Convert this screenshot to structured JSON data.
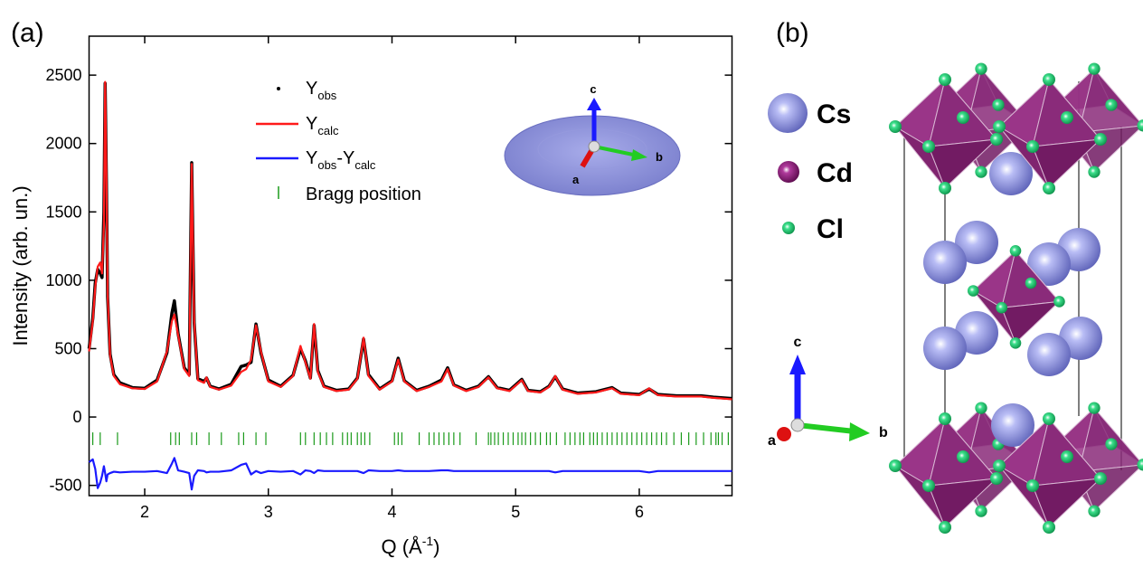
{
  "panels": [
    "(a)",
    "(b)"
  ],
  "chart_data": {
    "type": "line",
    "x_label": [
      "Q (Å",
      "-1",
      ")"
    ],
    "y_label": "Intensity (arb. un.)",
    "xlim": [
      1.55,
      6.75
    ],
    "xticks": [
      2,
      3,
      4,
      5,
      6
    ],
    "ylim": [
      -575,
      2785
    ],
    "yticks": [
      -500,
      0,
      500,
      1000,
      1500,
      2000,
      2500
    ],
    "x": [
      1.55,
      1.58,
      1.6,
      1.62,
      1.64,
      1.655,
      1.67,
      1.68,
      1.69,
      1.7,
      1.72,
      1.75,
      1.8,
      1.9,
      2.0,
      2.1,
      2.18,
      2.22,
      2.24,
      2.27,
      2.32,
      2.36,
      2.38,
      2.4,
      2.43,
      2.48,
      2.5,
      2.53,
      2.6,
      2.7,
      2.78,
      2.82,
      2.86,
      2.9,
      2.94,
      3.0,
      3.1,
      3.2,
      3.26,
      3.3,
      3.34,
      3.37,
      3.4,
      3.45,
      3.55,
      3.65,
      3.72,
      3.77,
      3.81,
      3.9,
      4.0,
      4.05,
      4.1,
      4.2,
      4.3,
      4.4,
      4.45,
      4.5,
      4.6,
      4.7,
      4.78,
      4.85,
      4.95,
      5.05,
      5.1,
      5.2,
      5.27,
      5.32,
      5.38,
      5.5,
      5.65,
      5.78,
      5.85,
      6.0,
      6.08,
      6.15,
      6.3,
      6.5,
      6.6,
      6.75
    ],
    "series": [
      {
        "name": [
          "Y",
          "obs"
        ],
        "color": "#000000",
        "marker": "dot",
        "values": [
          500,
          720,
          980,
          1080,
          1050,
          1020,
          1500,
          2440,
          1750,
          880,
          460,
          310,
          250,
          215,
          210,
          270,
          470,
          760,
          850,
          610,
          360,
          310,
          1860,
          690,
          280,
          260,
          285,
          225,
          205,
          240,
          370,
          380,
          400,
          680,
          470,
          270,
          225,
          305,
          500,
          410,
          285,
          670,
          340,
          225,
          195,
          205,
          285,
          570,
          310,
          205,
          265,
          430,
          265,
          195,
          225,
          270,
          360,
          235,
          195,
          225,
          295,
          215,
          195,
          275,
          195,
          185,
          225,
          295,
          205,
          175,
          185,
          215,
          175,
          165,
          205,
          165,
          155,
          155,
          145,
          135
        ]
      },
      {
        "name": [
          "Y",
          "calc"
        ],
        "color": "#ff1a1a",
        "marker": "line",
        "values": [
          480,
          700,
          950,
          1100,
          1130,
          1050,
          1400,
          2450,
          1800,
          900,
          450,
          300,
          240,
          210,
          205,
          260,
          480,
          700,
          750,
          600,
          350,
          300,
          1850,
          700,
          270,
          250,
          290,
          220,
          200,
          230,
          330,
          350,
          420,
          670,
          480,
          260,
          220,
          300,
          520,
          400,
          280,
          680,
          330,
          220,
          190,
          200,
          280,
          580,
          300,
          200,
          260,
          420,
          260,
          190,
          220,
          260,
          350,
          230,
          190,
          220,
          290,
          210,
          190,
          270,
          190,
          180,
          220,
          300,
          200,
          170,
          180,
          210,
          170,
          160,
          210,
          160,
          150,
          150,
          140,
          130
        ]
      },
      {
        "name": [
          "Y",
          "obs",
          "-Y",
          "calc"
        ],
        "color": "#1a1aff",
        "marker": "line",
        "values": [
          -330,
          -310,
          -380,
          -520,
          -480,
          -430,
          -360,
          -410,
          -470,
          -420,
          -410,
          -400,
          -405,
          -400,
          -400,
          -395,
          -410,
          -340,
          -300,
          -390,
          -400,
          -410,
          -530,
          -430,
          -390,
          -395,
          -405,
          -400,
          -400,
          -390,
          -350,
          -340,
          -420,
          -395,
          -410,
          -395,
          -400,
          -395,
          -420,
          -390,
          -395,
          -410,
          -390,
          -395,
          -395,
          -395,
          -395,
          -410,
          -390,
          -395,
          -395,
          -390,
          -395,
          -395,
          -395,
          -390,
          -390,
          -395,
          -395,
          -395,
          -395,
          -395,
          -395,
          -395,
          -395,
          -395,
          -395,
          -405,
          -395,
          -395,
          -395,
          -395,
          -395,
          -395,
          -405,
          -395,
          -395,
          -395,
          -395,
          -395
        ]
      }
    ],
    "bragg": {
      "name": "Bragg position",
      "color": "#1a9a1a",
      "positions": [
        1.58,
        1.64,
        1.78,
        2.21,
        2.25,
        2.28,
        2.38,
        2.42,
        2.52,
        2.62,
        2.76,
        2.8,
        2.9,
        2.98,
        3.26,
        3.3,
        3.37,
        3.42,
        3.47,
        3.52,
        3.6,
        3.64,
        3.67,
        3.72,
        3.75,
        3.78,
        3.82,
        4.02,
        4.05,
        4.08,
        4.22,
        4.3,
        4.34,
        4.38,
        4.42,
        4.46,
        4.5,
        4.55,
        4.68,
        4.78,
        4.8,
        4.83,
        4.86,
        4.9,
        4.94,
        4.98,
        5.02,
        5.05,
        5.08,
        5.12,
        5.16,
        5.2,
        5.25,
        5.28,
        5.33,
        5.4,
        5.44,
        5.48,
        5.52,
        5.55,
        5.6,
        5.63,
        5.66,
        5.7,
        5.74,
        5.78,
        5.82,
        5.86,
        5.9,
        5.94,
        5.98,
        6.02,
        6.06,
        6.1,
        6.14,
        6.18,
        6.22,
        6.28,
        6.34,
        6.4,
        6.46,
        6.52,
        6.58,
        6.62,
        6.64,
        6.67,
        6.72
      ]
    },
    "inset_axis_labels": [
      "c",
      "b",
      "a"
    ]
  },
  "structure": {
    "legend": [
      "Cs",
      "Cd",
      "Cl"
    ],
    "axis_labels": [
      "c",
      "a",
      "b"
    ]
  }
}
